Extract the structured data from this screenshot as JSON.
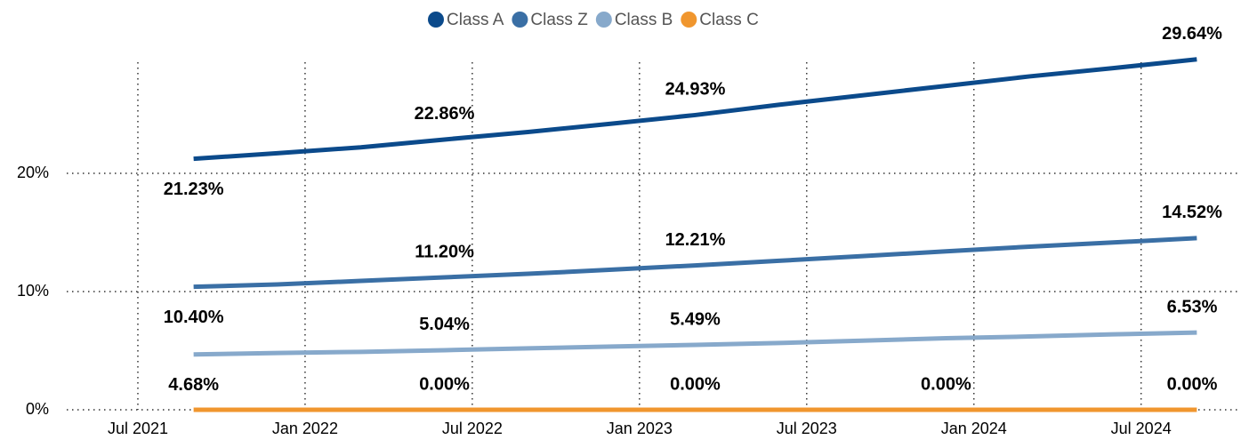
{
  "chart_data": {
    "type": "line",
    "x": [
      "2021-09",
      "2021-12",
      "2022-03",
      "2022-06",
      "2022-09",
      "2022-12",
      "2023-03",
      "2023-06",
      "2023-09",
      "2023-12",
      "2024-03",
      "2024-06",
      "2024-09"
    ],
    "series": [
      {
        "name": "Class A",
        "color": "#0b4a8b",
        "values": [
          21.23,
          21.7,
          22.2,
          22.86,
          23.5,
          24.2,
          24.93,
          25.8,
          26.6,
          27.4,
          28.2,
          28.9,
          29.64
        ],
        "value_labels": [
          "21.23%",
          null,
          null,
          "22.86%",
          null,
          null,
          "24.93%",
          null,
          null,
          null,
          null,
          null,
          "29.64%"
        ]
      },
      {
        "name": "Class Z",
        "color": "#3a6fa5",
        "values": [
          10.4,
          10.6,
          10.9,
          11.2,
          11.5,
          11.85,
          12.21,
          12.6,
          13.0,
          13.4,
          13.8,
          14.15,
          14.52
        ],
        "value_labels": [
          "10.40%",
          null,
          null,
          "11.20%",
          null,
          null,
          "12.21%",
          null,
          null,
          null,
          null,
          null,
          "14.52%"
        ]
      },
      {
        "name": "Class B",
        "color": "#87a9cb",
        "values": [
          4.68,
          4.8,
          4.9,
          5.04,
          5.2,
          5.35,
          5.49,
          5.65,
          5.85,
          6.05,
          6.2,
          6.38,
          6.53
        ],
        "value_labels": [
          "4.68%",
          null,
          null,
          "5.04%",
          null,
          null,
          "5.49%",
          null,
          null,
          null,
          null,
          null,
          "6.53%"
        ]
      },
      {
        "name": "Class C",
        "color": "#f0962e",
        "values": [
          0,
          0,
          0,
          0,
          0,
          0,
          0,
          0,
          0,
          0,
          0,
          0,
          0
        ],
        "value_labels": [
          null,
          null,
          null,
          "0.00%",
          null,
          null,
          "0.00%",
          null,
          null,
          "0.00%",
          null,
          null,
          "0.00%"
        ]
      }
    ],
    "xlim": [
      "2021-04",
      "2024-11"
    ],
    "xticks": [
      {
        "value": "2021-07",
        "label": "Jul 2021"
      },
      {
        "value": "2022-01",
        "label": "Jan 2022"
      },
      {
        "value": "2022-07",
        "label": "Jul 2022"
      },
      {
        "value": "2023-01",
        "label": "Jan 2023"
      },
      {
        "value": "2023-07",
        "label": "Jul 2023"
      },
      {
        "value": "2024-01",
        "label": "Jan 2024"
      },
      {
        "value": "2024-07",
        "label": "Jul 2024"
      }
    ],
    "ylim": [
      0,
      30
    ],
    "yticks": [
      {
        "value": 0,
        "label": "0%"
      },
      {
        "value": 10,
        "label": "10%"
      },
      {
        "value": 20,
        "label": "20%"
      }
    ],
    "grid": true,
    "legend": "top"
  }
}
